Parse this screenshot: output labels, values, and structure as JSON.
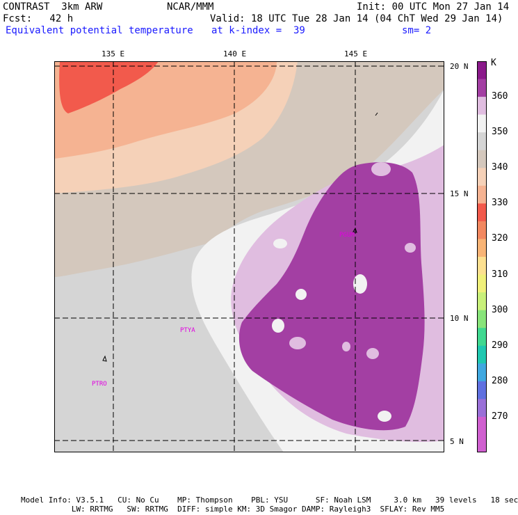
{
  "header": {
    "model": "CONTRAST  3km ARW",
    "org": "NCAR/MMM",
    "init": "Init: 00 UTC Mon 27 Jan 14",
    "fcst": "Fcst:   42 h",
    "valid": "Valid: 18 UTC Tue 28 Jan 14 (04 ChT Wed 29 Jan 14)",
    "field": "Equivalent potential temperature",
    "kindex": "at k-index =  39",
    "sm": "sm= 2"
  },
  "map": {
    "lon_labels": [
      "135 E",
      "140 E",
      "145 E"
    ],
    "lat_labels": [
      "20 N",
      "15 N",
      "10 N",
      "5 N"
    ],
    "stations": [
      "PTYA",
      "PTRO",
      "PGUM"
    ]
  },
  "colorbar": {
    "unit": "K",
    "levels": [
      "360",
      "350",
      "340",
      "330",
      "320",
      "310",
      "300",
      "290",
      "280",
      "270"
    ],
    "colors": {
      "370": "#8a1a8a",
      "365": "#a33fa3",
      "360": "#e0bde0",
      "355": "#f2f2f2",
      "350": "#d5d5d5",
      "345": "#d4c8bd",
      "340": "#f5d1b8",
      "335": "#f5b392",
      "330": "#f25a4c",
      "325": "#f28860",
      "320": "#f8b476",
      "315": "#fce090",
      "310": "#f0f07a",
      "305": "#c8f07a",
      "300": "#88e47a",
      "295": "#40d890",
      "290": "#20c8b0",
      "285": "#40a8e0",
      "280": "#6070e0",
      "275": "#9a70d8",
      "270": "#d060d0"
    }
  },
  "footer": {
    "line1": "Model Info: V3.5.1   CU: No Cu    MP: Thompson    PBL: YSU      SF: Noah LSM     3.0 km   39 levels   18 sec",
    "line2": "           LW: RRTMG   SW: RRTMG  DIFF: simple KM: 3D Smagor DAMP: Rayleigh3  SFLAY: Rev MM5"
  }
}
